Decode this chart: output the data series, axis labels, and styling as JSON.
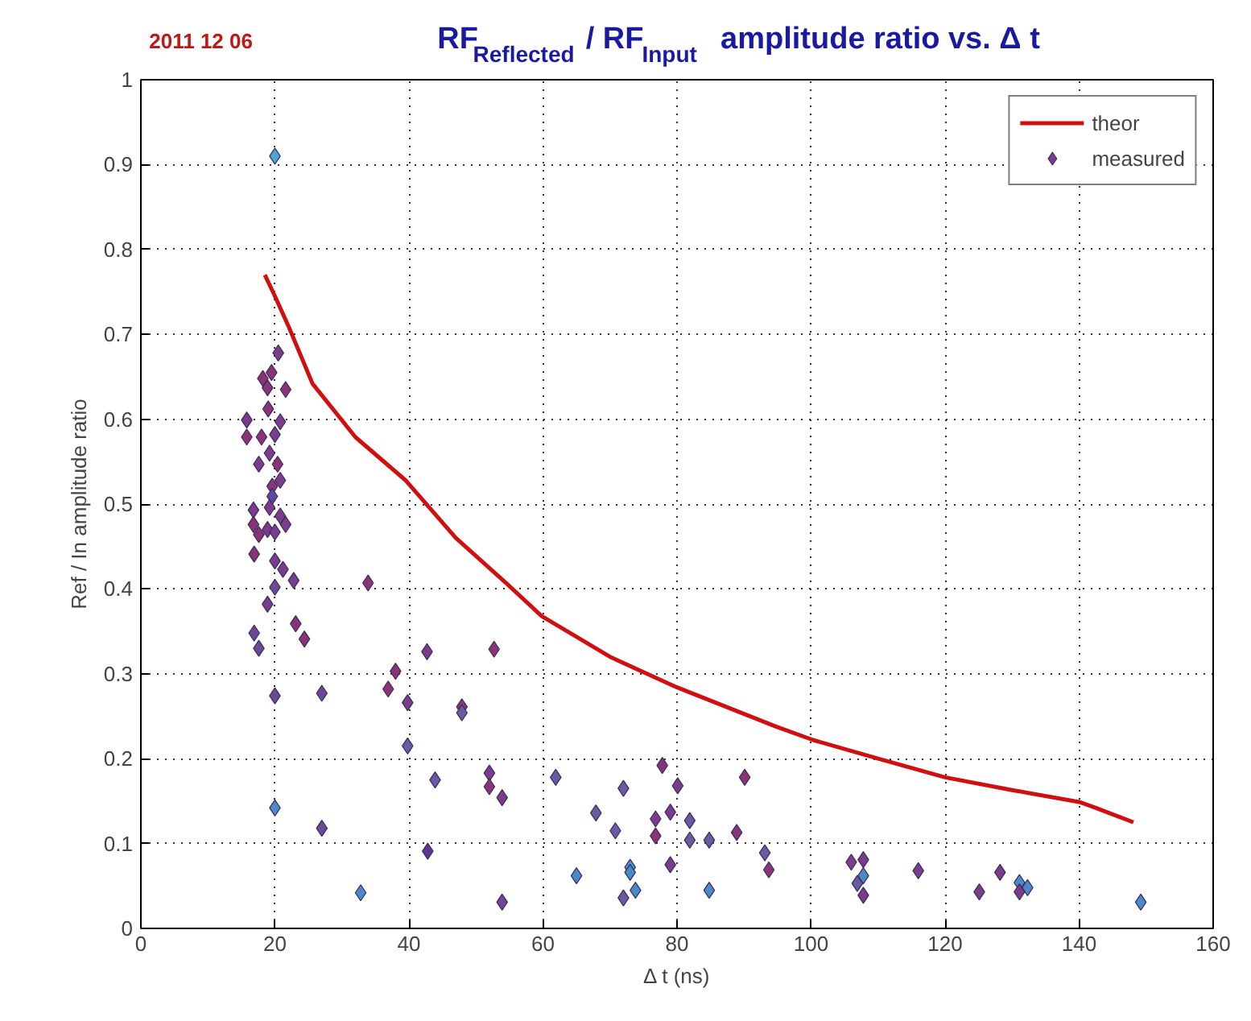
{
  "chart_data": {
    "type": "scatter",
    "title": "RF$_{Reflected}$ / RF$_{Input}$  amplitude ratio vs. Δ t",
    "xlabel": "Δ t (ns)",
    "ylabel": "Ref / In amplitude ratio",
    "annotations": [
      "2011 12 06"
    ],
    "xlim": [
      0,
      160
    ],
    "xticks": [
      0,
      20,
      40,
      60,
      80,
      100,
      120,
      140,
      160
    ],
    "ylim": [
      0,
      1
    ],
    "yticks": [
      0,
      0.1,
      0.2,
      0.3,
      0.4,
      0.5,
      0.6,
      0.7,
      0.8,
      0.9,
      1
    ],
    "grid": true,
    "legend": "top right",
    "series": [
      {
        "name": "theor",
        "type": "line",
        "color": "#d01010",
        "line_style": "solid",
        "marker": "none",
        "x": [
          18.5,
          20,
          22,
          25.6,
          32,
          39.5,
          47,
          54.5,
          59.8,
          70,
          80,
          94.7,
          100.3,
          110,
          120,
          130,
          140,
          142.5,
          148.1
        ],
        "values": [
          0.77,
          0.745,
          0.71,
          0.642,
          0.579,
          0.528,
          0.46,
          0.407,
          0.368,
          0.32,
          0.284,
          0.238,
          0.222,
          0.2,
          0.178,
          0.163,
          0.149,
          0.142,
          0.125
        ]
      },
      {
        "name": "measured",
        "type": "scatter",
        "color": "#7a3d8c",
        "marker": "diamond",
        "x": [
          20,
          18.2,
          19.5,
          20.5,
          18.9,
          21.6,
          15.8,
          19,
          20.8,
          15.8,
          18,
          20,
          17.6,
          20.4,
          19.2,
          20.8,
          19.6,
          19.6,
          16.8,
          19.2,
          20.8,
          16.8,
          18.9,
          21.6,
          17.6,
          20,
          16.9,
          20,
          21.2,
          22.8,
          20,
          18.9,
          23.1,
          24.4,
          16.9,
          17.6,
          20,
          27,
          20,
          27,
          33.9,
          42.7,
          52.7,
          38,
          36.9,
          39.8,
          47.9,
          47.9,
          39.8,
          43.9,
          52,
          52,
          53.9,
          61.9,
          67.9,
          70.8,
          72,
          77.8,
          80.1,
          76.8,
          79,
          76.8,
          81.9,
          81.9,
          84.8,
          88.9,
          90.1,
          93.1,
          93.7,
          79,
          42.8,
          32.8,
          53.9,
          65,
          73,
          73,
          73.8,
          72,
          84.8,
          106,
          107.8,
          107.8,
          106.9,
          107.8,
          116,
          125.1,
          128.2,
          131.1,
          132.3,
          131.1,
          149.2
        ],
        "values": [
          0.91,
          0.648,
          0.655,
          0.678,
          0.637,
          0.635,
          0.599,
          0.612,
          0.597,
          0.579,
          0.579,
          0.582,
          0.547,
          0.547,
          0.56,
          0.528,
          0.521,
          0.509,
          0.493,
          0.496,
          0.486,
          0.476,
          0.47,
          0.476,
          0.464,
          0.467,
          0.441,
          0.433,
          0.423,
          0.41,
          0.402,
          0.382,
          0.359,
          0.341,
          0.348,
          0.33,
          0.274,
          0.277,
          0.142,
          0.118,
          0.407,
          0.326,
          0.329,
          0.303,
          0.282,
          0.266,
          0.261,
          0.254,
          0.215,
          0.175,
          0.183,
          0.167,
          0.154,
          0.178,
          0.136,
          0.115,
          0.165,
          0.192,
          0.168,
          0.129,
          0.137,
          0.109,
          0.127,
          0.104,
          0.104,
          0.113,
          0.178,
          0.089,
          0.069,
          0.075,
          0.091,
          0.042,
          0.031,
          0.062,
          0.072,
          0.066,
          0.045,
          0.036,
          0.045,
          0.078,
          0.081,
          0.062,
          0.053,
          0.039,
          0.068,
          0.043,
          0.066,
          0.054,
          0.048,
          0.043,
          0.031
        ],
        "colors": [
          "#4aa8d8",
          "#8a3478",
          "#8a3478",
          "#7a3d8c",
          "#8a3478",
          "#8a3478",
          "#7a3d8c",
          "#8a3478",
          "#7a3d8c",
          "#8a3478",
          "#8a3478",
          "#7a3d8c",
          "#7a3d8c",
          "#8a3478",
          "#7a3d8c",
          "#7a3d8c",
          "#8a3478",
          "#5a4aa0",
          "#7a3d8c",
          "#7a3d8c",
          "#7a3d8c",
          "#8a3478",
          "#7a3d8c",
          "#7a3d8c",
          "#8a3478",
          "#7a3d8c",
          "#8a3478",
          "#7a3d8c",
          "#7a3d8c",
          "#7a3d8c",
          "#6a4a94",
          "#7a3d8c",
          "#8a3478",
          "#8a3478",
          "#6a4a94",
          "#6a4a94",
          "#6a4a94",
          "#6a4a94",
          "#4a8ac8",
          "#6a4a94",
          "#8a3478",
          "#7a3d8c",
          "#8a3478",
          "#8a3478",
          "#8a3478",
          "#7a3d8c",
          "#8a3478",
          "#6a5aa0",
          "#6a5aa0",
          "#6a5aa0",
          "#7a3d8c",
          "#8a3478",
          "#7a3d8c",
          "#6a5aa0",
          "#6a5aa0",
          "#6a5aa0",
          "#6a5aa0",
          "#8a3478",
          "#7a3d8c",
          "#7a3d8c",
          "#7a3d8c",
          "#8a3478",
          "#6a5aa0",
          "#6a5aa0",
          "#6a5aa0",
          "#8a3478",
          "#8a3478",
          "#6a5aa0",
          "#8a3478",
          "#7a3d8c",
          "#5a3a90",
          "#4a8ac8",
          "#6a4a94",
          "#4a8ac8",
          "#4a9ad8",
          "#4a8ac8",
          "#4a8ac8",
          "#6a5aa0",
          "#4a8ac8",
          "#7a3d8c",
          "#7a3d8c",
          "#4a8ac8",
          "#6a5aa0",
          "#7a3d8c",
          "#7a3d8c",
          "#7a3d8c",
          "#7a3d8c",
          "#4a8ac8",
          "#4a8ac8",
          "#7a3d8c",
          "#4a8ac8"
        ]
      }
    ]
  }
}
